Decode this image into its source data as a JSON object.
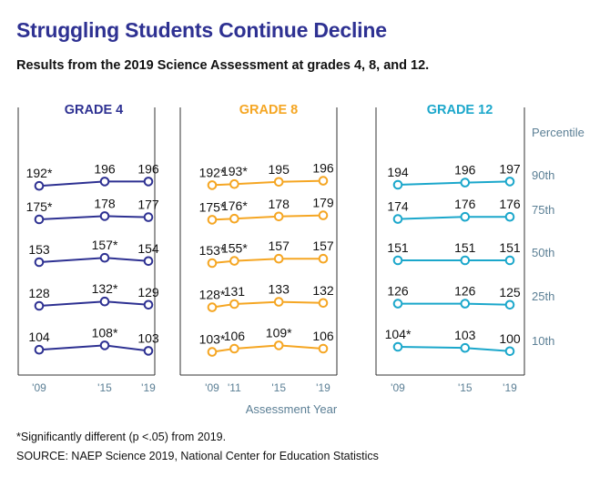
{
  "title": "Struggling Students Continue Decline",
  "subtitle": "Results from the 2019 Science Assessment at grades 4, 8, and 12.",
  "footnote": "*Significantly different (p <.05) from 2019.",
  "source": "SOURCE: NAEP Science 2019, National Center for Education Statistics",
  "chart_data": {
    "type": "line",
    "xlabel": "Assessment Year",
    "percentile_header": "Percentile",
    "percentiles": [
      "90th",
      "75th",
      "50th",
      "25th",
      "10th"
    ],
    "grade_colors": {
      "GRADE 4": "#2e3192",
      "GRADE 8": "#f5a623",
      "GRADE 12": "#1ba7cb"
    },
    "panels": [
      {
        "name": "GRADE 4",
        "x": [
          2009,
          2015,
          2019
        ],
        "x_tick_labels": [
          "'09",
          "'15",
          "'19"
        ],
        "series": [
          {
            "percentile": "90th",
            "values": [
              192,
              196,
              196
            ],
            "labels": [
              "192*",
              "196",
              "196"
            ]
          },
          {
            "percentile": "75th",
            "values": [
              175,
              178,
              177
            ],
            "labels": [
              "175*",
              "178",
              "177"
            ]
          },
          {
            "percentile": "50th",
            "values": [
              153,
              157,
              154
            ],
            "labels": [
              "153",
              "157*",
              "154"
            ]
          },
          {
            "percentile": "25th",
            "values": [
              128,
              132,
              129
            ],
            "labels": [
              "128",
              "132*",
              "129"
            ]
          },
          {
            "percentile": "10th",
            "values": [
              104,
              108,
              103
            ],
            "labels": [
              "104",
              "108*",
              "103"
            ]
          }
        ]
      },
      {
        "name": "GRADE 8",
        "x": [
          2009,
          2011,
          2015,
          2019
        ],
        "x_tick_labels": [
          "'09",
          "'11",
          "'15",
          "'19"
        ],
        "series": [
          {
            "percentile": "90th",
            "values": [
              192,
              193,
              195,
              196
            ],
            "labels": [
              "192*",
              "193*",
              "195",
              "196"
            ]
          },
          {
            "percentile": "75th",
            "values": [
              175,
              176,
              178,
              179
            ],
            "labels": [
              "175*",
              "176*",
              "178",
              "179"
            ]
          },
          {
            "percentile": "50th",
            "values": [
              153,
              155,
              157,
              157
            ],
            "labels": [
              "153*",
              "155*",
              "157",
              "157"
            ]
          },
          {
            "percentile": "25th",
            "values": [
              128,
              131,
              133,
              132
            ],
            "labels": [
              "128*",
              "131",
              "133",
              "132"
            ]
          },
          {
            "percentile": "10th",
            "values": [
              103,
              106,
              109,
              106
            ],
            "labels": [
              "103*",
              "106",
              "109*",
              "106"
            ]
          }
        ]
      },
      {
        "name": "GRADE 12",
        "x": [
          2009,
          2015,
          2019
        ],
        "x_tick_labels": [
          "'09",
          "'15",
          "'19"
        ],
        "series": [
          {
            "percentile": "90th",
            "values": [
              194,
              196,
              197
            ],
            "labels": [
              "194",
              "196",
              "197"
            ]
          },
          {
            "percentile": "75th",
            "values": [
              174,
              176,
              176
            ],
            "labels": [
              "174",
              "176",
              "176"
            ]
          },
          {
            "percentile": "50th",
            "values": [
              151,
              151,
              151
            ],
            "labels": [
              "151",
              "151",
              "151"
            ]
          },
          {
            "percentile": "25th",
            "values": [
              126,
              126,
              125
            ],
            "labels": [
              "126",
              "126",
              "125"
            ]
          },
          {
            "percentile": "10th",
            "values": [
              104,
              103,
              100
            ],
            "labels": [
              "104*",
              "103",
              "100"
            ]
          }
        ]
      }
    ]
  }
}
